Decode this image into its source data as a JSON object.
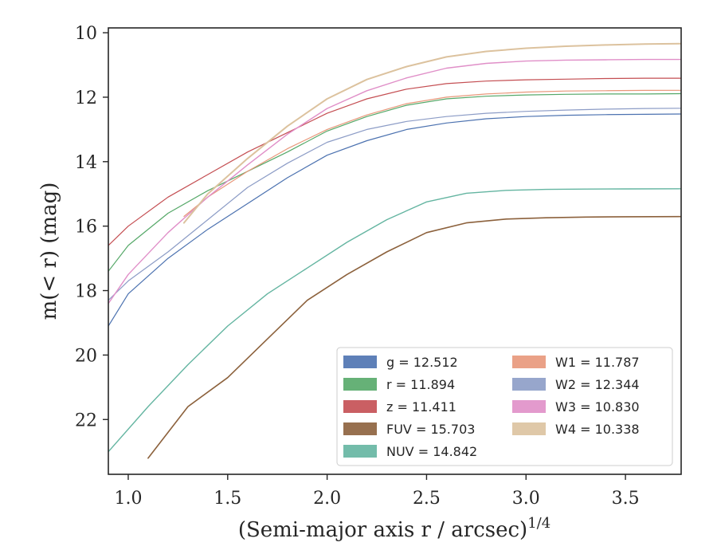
{
  "chart_data": {
    "type": "line",
    "xlabel": "(Semi-major axis r / arcsec)",
    "xlabel_sup": "1/4",
    "ylabel": "m(< r) (mag)",
    "xlim": [
      0.9,
      3.78
    ],
    "ylim": [
      23.7,
      9.85
    ],
    "y_inverted": true,
    "x_ticks": [
      1.0,
      1.5,
      2.0,
      2.5,
      3.0,
      3.5
    ],
    "x_tick_labels": [
      "1.0",
      "1.5",
      "2.0",
      "2.5",
      "3.0",
      "3.5"
    ],
    "y_ticks": [
      10,
      12,
      14,
      16,
      18,
      20,
      22
    ],
    "y_tick_labels": [
      "10",
      "12",
      "14",
      "16",
      "18",
      "20",
      "22"
    ],
    "grid": false,
    "legend_placement": "lower-right",
    "legend_columns": 2,
    "series": [
      {
        "name": "g = 12.512",
        "color": "#4c72b0",
        "x": [
          0.9,
          1.0,
          1.2,
          1.4,
          1.6,
          1.8,
          2.0,
          2.2,
          2.4,
          2.6,
          2.8,
          3.0,
          3.2,
          3.4,
          3.6,
          3.78
        ],
        "y": [
          19.1,
          18.1,
          17.0,
          16.1,
          15.3,
          14.5,
          13.8,
          13.35,
          13.0,
          12.8,
          12.67,
          12.6,
          12.56,
          12.54,
          12.53,
          12.52
        ],
        "width": 1.2
      },
      {
        "name": "r = 11.894",
        "color": "#55a868",
        "x": [
          0.9,
          1.0,
          1.2,
          1.4,
          1.6,
          1.8,
          2.0,
          2.2,
          2.4,
          2.6,
          2.8,
          3.0,
          3.2,
          3.4,
          3.6,
          3.78
        ],
        "y": [
          17.4,
          16.6,
          15.6,
          14.9,
          14.3,
          13.7,
          13.05,
          12.6,
          12.25,
          12.05,
          11.97,
          11.93,
          11.91,
          11.9,
          11.9,
          11.89
        ],
        "width": 1.2
      },
      {
        "name": "z = 11.411",
        "color": "#c44e52",
        "x": [
          0.9,
          1.0,
          1.2,
          1.4,
          1.6,
          1.8,
          2.0,
          2.2,
          2.4,
          2.6,
          2.8,
          3.0,
          3.2,
          3.4,
          3.6,
          3.78
        ],
        "y": [
          16.6,
          16.0,
          15.1,
          14.4,
          13.7,
          13.1,
          12.5,
          12.05,
          11.75,
          11.58,
          11.5,
          11.46,
          11.44,
          11.42,
          11.41,
          11.41
        ],
        "width": 1.2
      },
      {
        "name": "FUV = 15.703",
        "color": "#8c613c",
        "x": [
          1.1,
          1.3,
          1.5,
          1.7,
          1.9,
          2.1,
          2.3,
          2.5,
          2.7,
          2.9,
          3.1,
          3.3,
          3.5,
          3.78
        ],
        "y": [
          23.2,
          21.6,
          20.7,
          19.5,
          18.3,
          17.5,
          16.8,
          16.2,
          15.9,
          15.78,
          15.74,
          15.72,
          15.71,
          15.703
        ],
        "width": 1.6
      },
      {
        "name": "NUV = 14.842",
        "color": "#64b5a1",
        "x": [
          0.9,
          1.1,
          1.3,
          1.5,
          1.7,
          1.9,
          2.1,
          2.3,
          2.5,
          2.7,
          2.9,
          3.1,
          3.3,
          3.5,
          3.78
        ],
        "y": [
          23.0,
          21.6,
          20.3,
          19.1,
          18.1,
          17.3,
          16.5,
          15.8,
          15.25,
          14.98,
          14.89,
          14.86,
          14.85,
          14.845,
          14.842
        ],
        "width": 1.4
      },
      {
        "name": "W1 = 11.787",
        "color": "#e8977a",
        "x": [
          1.28,
          1.4,
          1.6,
          1.8,
          2.0,
          2.2,
          2.4,
          2.6,
          2.8,
          3.0,
          3.2,
          3.4,
          3.6,
          3.78
        ],
        "y": [
          15.7,
          15.1,
          14.3,
          13.6,
          13.0,
          12.55,
          12.2,
          12.0,
          11.9,
          11.84,
          11.81,
          11.8,
          11.79,
          11.787
        ],
        "width": 1.2
      },
      {
        "name": "W2 = 12.344",
        "color": "#8c9cc6",
        "x": [
          0.9,
          1.0,
          1.2,
          1.4,
          1.6,
          1.8,
          2.0,
          2.2,
          2.4,
          2.6,
          2.8,
          3.0,
          3.2,
          3.4,
          3.6,
          3.78
        ],
        "y": [
          18.3,
          17.7,
          16.8,
          15.8,
          14.8,
          14.05,
          13.4,
          13.0,
          12.75,
          12.6,
          12.5,
          12.44,
          12.4,
          12.37,
          12.35,
          12.344
        ],
        "width": 1.2
      },
      {
        "name": "W3 = 10.830",
        "color": "#e08fc8",
        "x": [
          0.9,
          1.0,
          1.2,
          1.4,
          1.6,
          1.8,
          2.0,
          2.2,
          2.4,
          2.6,
          2.8,
          3.0,
          3.2,
          3.4,
          3.6,
          3.78
        ],
        "y": [
          18.4,
          17.5,
          16.2,
          15.1,
          14.1,
          13.15,
          12.35,
          11.8,
          11.4,
          11.1,
          10.95,
          10.88,
          10.85,
          10.84,
          10.83,
          10.83
        ],
        "width": 1.4
      },
      {
        "name": "W4 = 10.338",
        "color": "#dcc29e",
        "x": [
          1.28,
          1.4,
          1.6,
          1.8,
          2.0,
          2.2,
          2.4,
          2.6,
          2.8,
          3.0,
          3.2,
          3.4,
          3.6,
          3.78
        ],
        "y": [
          15.9,
          15.0,
          13.9,
          12.9,
          12.05,
          11.45,
          11.05,
          10.75,
          10.58,
          10.48,
          10.42,
          10.38,
          10.35,
          10.338
        ],
        "width": 2.0
      }
    ],
    "legend_entries": [
      {
        "label": "g = 12.512",
        "color": "#4c72b0"
      },
      {
        "label": "r = 11.894",
        "color": "#55a868"
      },
      {
        "label": "z = 11.411",
        "color": "#c44e52"
      },
      {
        "label": "FUV = 15.703",
        "color": "#8c613c"
      },
      {
        "label": "NUV = 14.842",
        "color": "#64b5a1"
      },
      {
        "label": "W1 = 11.787",
        "color": "#e8977a"
      },
      {
        "label": "W2 = 12.344",
        "color": "#8c9cc6"
      },
      {
        "label": "W3 = 10.830",
        "color": "#e08fc8"
      },
      {
        "label": "W4 = 10.338",
        "color": "#dcc29e"
      }
    ]
  }
}
